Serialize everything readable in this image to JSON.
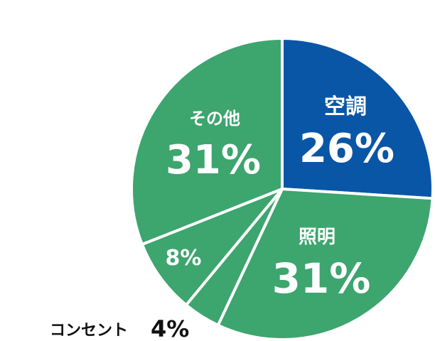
{
  "chart_data": {
    "type": "pie",
    "slices": [
      {
        "label": "空調",
        "value": 26,
        "display": "26%",
        "color": "#0a56a6"
      },
      {
        "label": "照明",
        "value": 31,
        "display": "31%",
        "color": "#3da56e"
      },
      {
        "label": "コンセント",
        "value": 4,
        "display": "4%",
        "color": "#3da56e"
      },
      {
        "label": "",
        "value": 8,
        "display": "8%",
        "color": "#3da56e"
      },
      {
        "label": "その他",
        "value": 31,
        "display": "31%",
        "color": "#3da56e"
      }
    ],
    "start": "top",
    "direction": "clockwise"
  }
}
